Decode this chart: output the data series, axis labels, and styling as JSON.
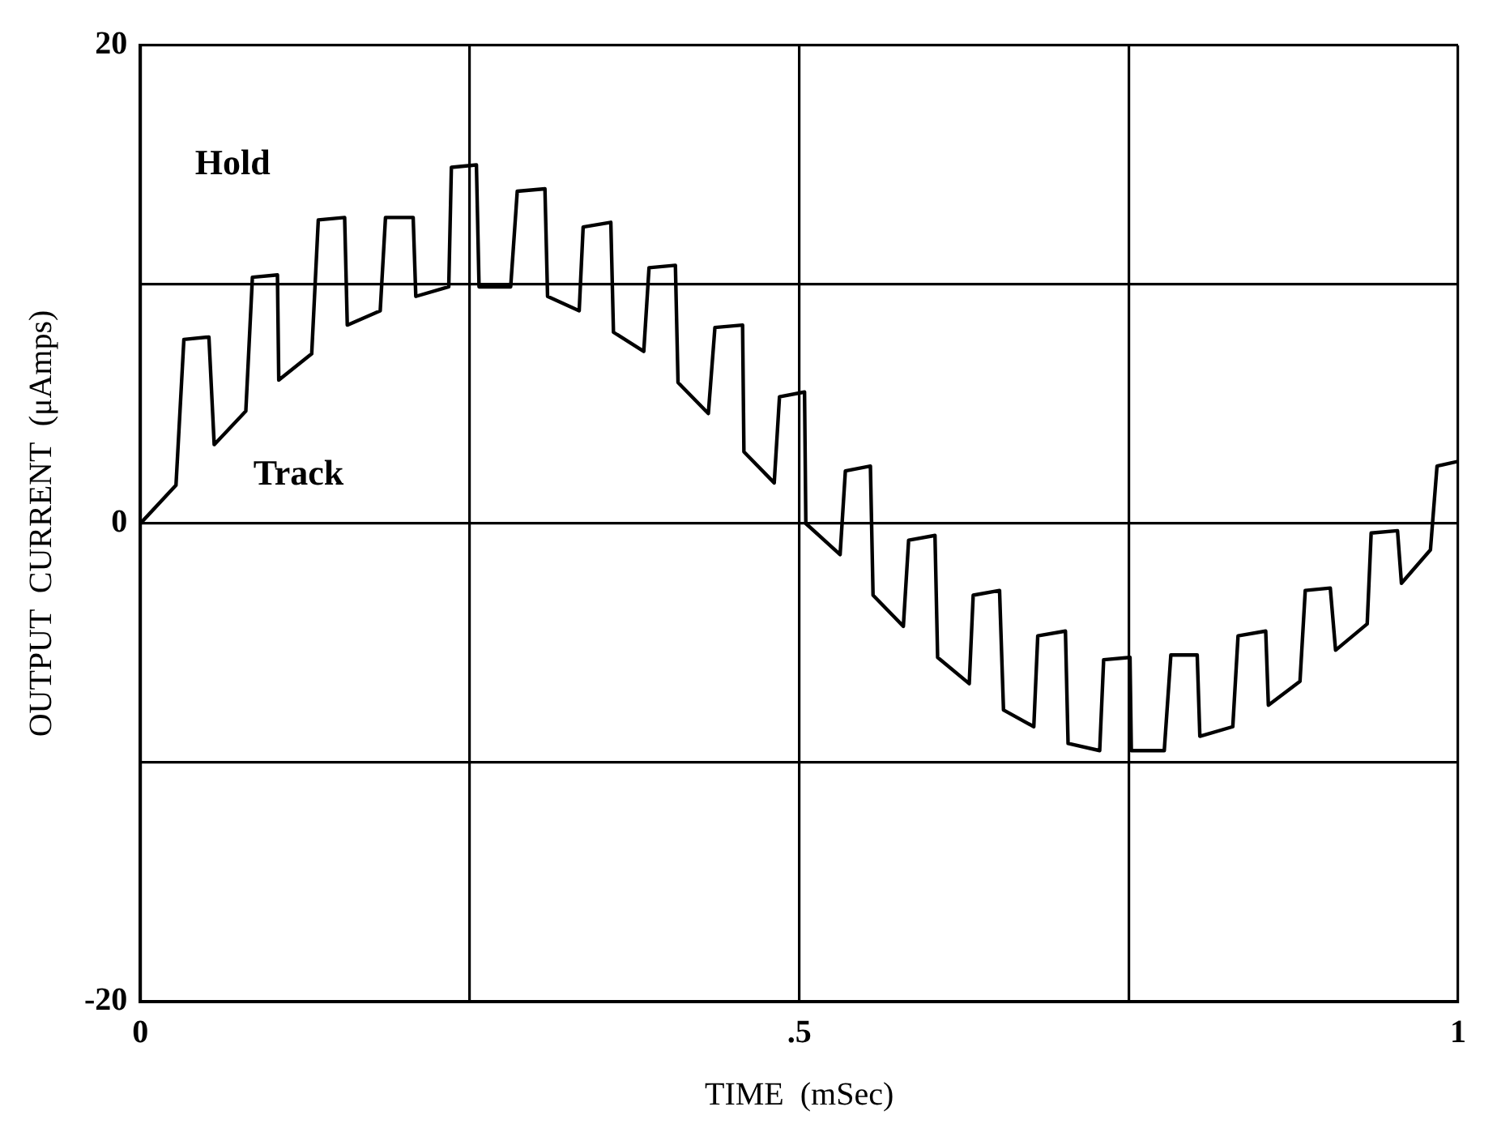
{
  "chart_data": {
    "type": "line",
    "xlabel": "TIME  (mSec)",
    "ylabel": "OUTPUT  CURRENT  (μAmps)",
    "xlim": [
      0,
      1
    ],
    "ylim": [
      -20,
      20
    ],
    "xticks": [
      0,
      {
        "value": 0.25,
        "label": null
      },
      {
        "value": 0.5,
        "label": ".5"
      },
      {
        "value": 0.75,
        "label": null
      },
      1
    ],
    "yticks": [
      -20,
      {
        "value": -10,
        "label": null
      },
      0,
      {
        "value": 10,
        "label": null
      },
      20
    ],
    "grid": true,
    "marker": "none",
    "line_style": "solid",
    "annotations": [
      "Hold",
      "Track"
    ],
    "series": [
      {
        "color": "#000000",
        "x": [
          0,
          0.027,
          0.033,
          0.052,
          0.056,
          0.08,
          0.085,
          0.104,
          0.105,
          0.13,
          0.135,
          0.155,
          0.157,
          0.182,
          0.186,
          0.207,
          0.209,
          0.234,
          0.236,
          0.255,
          0.257,
          0.281,
          0.286,
          0.307,
          0.309,
          0.333,
          0.336,
          0.357,
          0.359,
          0.382,
          0.386,
          0.406,
          0.408,
          0.431,
          0.436,
          0.457,
          0.458,
          0.481,
          0.485,
          0.504,
          0.505,
          0.531,
          0.535,
          0.554,
          0.556,
          0.579,
          0.583,
          0.603,
          0.605,
          0.629,
          0.632,
          0.652,
          0.655,
          0.678,
          0.681,
          0.702,
          0.704,
          0.728,
          0.731,
          0.751,
          0.752,
          0.777,
          0.782,
          0.802,
          0.804,
          0.829,
          0.833,
          0.854,
          0.856,
          0.88,
          0.884,
          0.903,
          0.907,
          0.931,
          0.934,
          0.954,
          0.957,
          0.979,
          0.984,
          1.0
        ],
        "values": [
          0,
          1.6,
          7.7,
          7.8,
          3.3,
          4.7,
          10.3,
          10.4,
          6.0,
          7.1,
          12.7,
          12.8,
          8.3,
          8.9,
          12.8,
          12.8,
          9.5,
          9.9,
          14.9,
          15.0,
          9.9,
          9.9,
          13.9,
          14.0,
          9.5,
          8.9,
          12.4,
          12.6,
          8.0,
          7.2,
          10.7,
          10.8,
          5.9,
          4.6,
          8.2,
          8.3,
          3.0,
          1.7,
          5.3,
          5.5,
          0,
          -1.3,
          2.2,
          2.4,
          -3.0,
          -4.3,
          -0.7,
          -0.5,
          -5.6,
          -6.7,
          -3.0,
          -2.8,
          -7.8,
          -8.5,
          -4.7,
          -4.5,
          -9.2,
          -9.5,
          -5.7,
          -5.6,
          -9.5,
          -9.5,
          -5.5,
          -5.5,
          -8.9,
          -8.5,
          -4.7,
          -4.5,
          -7.6,
          -6.6,
          -2.8,
          -2.7,
          -5.3,
          -4.2,
          -0.4,
          -0.3,
          -2.5,
          -1.1,
          2.4,
          2.6
        ]
      }
    ]
  }
}
